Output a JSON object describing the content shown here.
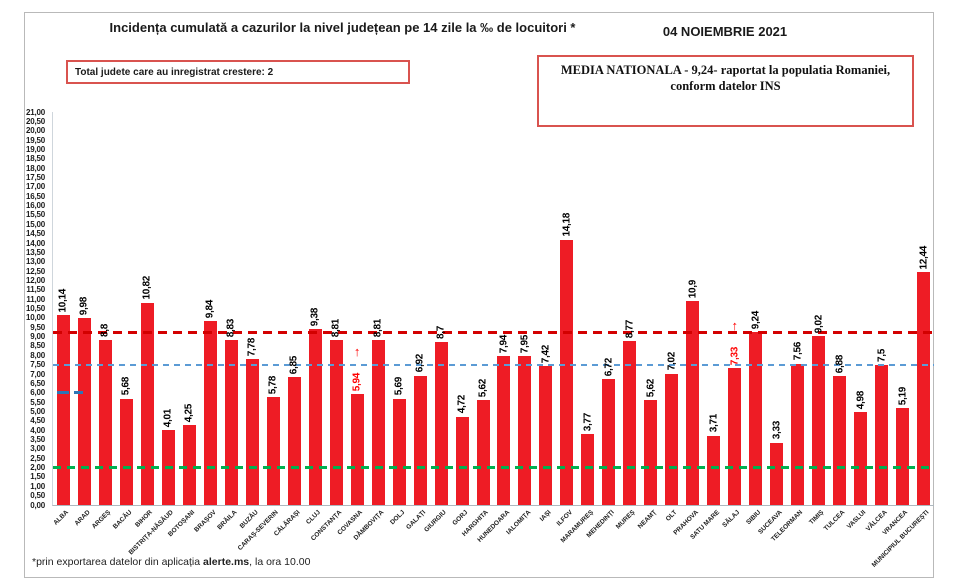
{
  "header": {
    "title": "Incidența cumulată a cazurilor la nivel județean pe 14 zile la ‰ de locuitori *",
    "date": "04 NOIEMBRIE 2021"
  },
  "info_boxes": {
    "growth_box": "Total judete care au inregistrat crestere: 2",
    "national_avg_line1": "MEDIA NATIONALA - 9,24-  raportat la populatia Romaniei,",
    "national_avg_line2": "conform datelor INS"
  },
  "footer": {
    "prefix": "*prin exportarea datelor din aplicația ",
    "bold": "alerte.ms",
    "suffix": ", la ora 10.00"
  },
  "chart_data": {
    "type": "bar",
    "title": "Incidența cumulată a cazurilor la nivel județean pe 14 zile la ‰ de locuitori",
    "xlabel": "",
    "ylabel": "",
    "ylim": [
      0,
      21
    ],
    "ytick_step": 0.5,
    "grid": false,
    "legend": "none",
    "bar_color": "#ee1c25",
    "label_color_default": "#000000",
    "label_color_increase": "#ff0000",
    "categories": [
      "ALBA",
      "ARAD",
      "ARGEȘ",
      "BACĂU",
      "BIHOR",
      "BISTRIȚA-NĂSĂUD",
      "BOTOȘANI",
      "BRAȘOV",
      "BRĂILA",
      "BUZĂU",
      "CARAȘ-SEVERIN",
      "CĂLĂRAȘI",
      "CLUJ",
      "CONSTANȚA",
      "COVASNA",
      "DÂMBOVIȚA",
      "DOLJ",
      "GALAȚI",
      "GIURGIU",
      "GORJ",
      "HARGHITA",
      "HUNEDOARA",
      "IALOMIȚA",
      "IAȘI",
      "ILFOV",
      "MARAMUREȘ",
      "MEHEDINȚI",
      "MUREȘ",
      "NEAMȚ",
      "OLT",
      "PRAHOVA",
      "SATU MARE",
      "SĂLAJ",
      "SIBIU",
      "SUCEAVA",
      "TELEORMAN",
      "TIMIȘ",
      "TULCEA",
      "VASLUI",
      "VÂLCEA",
      "VRANCEA",
      "MUNICIPIUL BUCUREȘTI"
    ],
    "values": [
      10.14,
      9.98,
      8.8,
      5.68,
      10.82,
      4.01,
      4.25,
      9.84,
      8.83,
      7.78,
      5.78,
      6.85,
      9.38,
      8.81,
      5.94,
      8.81,
      5.69,
      6.92,
      8.7,
      4.72,
      5.62,
      7.94,
      7.95,
      7.42,
      14.18,
      3.77,
      6.72,
      8.77,
      5.62,
      7.02,
      10.9,
      3.71,
      7.33,
      9.24,
      3.33,
      7.56,
      9.02,
      6.88,
      4.98,
      7.5,
      5.19,
      12.44
    ],
    "value_labels": [
      "10,14",
      "9,98",
      "8,8",
      "5,68",
      "10,82",
      "4,01",
      "4,25",
      "9,84",
      "8,83",
      "7,78",
      "5,78",
      "6,85",
      "9,38",
      "8,81",
      "5,94",
      "8,81",
      "5,69",
      "6,92",
      "8,7",
      "4,72",
      "5,62",
      "7,94",
      "7,95",
      "7,42",
      "14,18",
      "3,77",
      "6,72",
      "8,77",
      "5,62",
      "7,02",
      "10,9",
      "3,71",
      "7,33",
      "9,24",
      "3,33",
      "7,56",
      "9,02",
      "6,88",
      "4,98",
      "7,5",
      "5,19",
      "12,44"
    ],
    "increase_counties": [
      "COVASNA",
      "SĂLAJ"
    ],
    "increase_arrow": "↑",
    "reference_lines": [
      {
        "name": "national-average",
        "value": 9.24,
        "color": "#d30000",
        "style": "dashed",
        "thickness": 3,
        "dash": 9,
        "gap": 6,
        "full_width": true
      },
      {
        "name": "blue-threshold",
        "value": 7.5,
        "color": "#5b9bd5",
        "style": "dashed",
        "thickness": 2,
        "dash": 6,
        "gap": 5,
        "full_width": true
      },
      {
        "name": "blue-partial-6",
        "value": 6.0,
        "color": "#2e75b6",
        "style": "dashed",
        "thickness": 3,
        "dash": 12,
        "gap": 5,
        "full_width": false,
        "x_from": 4,
        "x_to": 30
      },
      {
        "name": "green-threshold",
        "value": 2.0,
        "color": "#00b050",
        "style": "dashed",
        "thickness": 3,
        "dash": 8,
        "gap": 6,
        "full_width": true
      }
    ]
  }
}
